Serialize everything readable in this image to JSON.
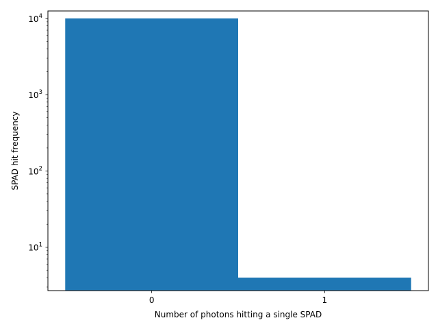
{
  "chart_data": {
    "type": "bar",
    "title": "",
    "xlabel": "Number of photons hitting a single SPAD",
    "ylabel": "SPAD hit frequency",
    "yscale": "log",
    "categories": [
      "0",
      "1"
    ],
    "values": [
      9996,
      4
    ],
    "ylim": [
      2.7,
      12500
    ],
    "y_ticks": [
      {
        "value": 10,
        "base": "10",
        "exp": "1"
      },
      {
        "value": 100,
        "base": "10",
        "exp": "2"
      },
      {
        "value": 1000,
        "base": "10",
        "exp": "3"
      },
      {
        "value": 10000,
        "base": "10",
        "exp": "4"
      }
    ],
    "bar_color": "#1f77b4",
    "grid": false,
    "legend": "none"
  }
}
